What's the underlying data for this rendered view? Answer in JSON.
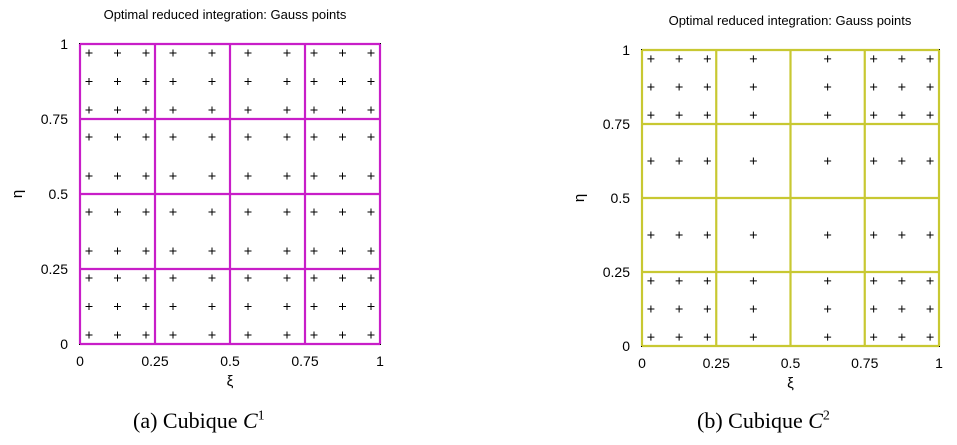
{
  "chart_data": [
    {
      "type": "scatter",
      "title": "Optimal reduced integration: Gauss points",
      "xlabel": "ξ",
      "ylabel": "η",
      "xlim": [
        0,
        1
      ],
      "ylim": [
        0,
        1
      ],
      "xticks": [
        "0",
        "0.25",
        "0.5",
        "0.75",
        "1"
      ],
      "yticks": [
        "0",
        "0.25",
        "0.5",
        "0.75",
        "1"
      ],
      "mesh_color": "#c81ec8",
      "mesh_lines": [
        0,
        0.25,
        0.5,
        0.75,
        1
      ],
      "gauss_x": [
        0.03,
        0.125,
        0.22,
        0.31,
        0.44,
        0.56,
        0.69,
        0.78,
        0.875,
        0.97
      ],
      "gauss_y": [
        0.03,
        0.125,
        0.22,
        0.31,
        0.44,
        0.56,
        0.69,
        0.78,
        0.875,
        0.97
      ],
      "caption": {
        "prefix": "(a) Cubique ",
        "symbol": "C",
        "sup": "1"
      }
    },
    {
      "type": "scatter",
      "title": "Optimal reduced integration: Gauss points",
      "xlabel": "ξ",
      "ylabel": "η",
      "xlim": [
        0,
        1
      ],
      "ylim": [
        0,
        1
      ],
      "xticks": [
        "0",
        "0.25",
        "0.5",
        "0.75",
        "1"
      ],
      "yticks": [
        "0",
        "0.25",
        "0.5",
        "0.75",
        "1"
      ],
      "mesh_color": "#c8c832",
      "mesh_lines_x": [
        0,
        0.25,
        0.5,
        0.75,
        1
      ],
      "mesh_lines_y": [
        0,
        0.25,
        0.5,
        0.75,
        1
      ],
      "gauss_x": [
        0.03,
        0.125,
        0.22,
        0.375,
        0.625,
        0.78,
        0.875,
        0.97
      ],
      "gauss_y": [
        0.03,
        0.125,
        0.22,
        0.375,
        0.625,
        0.78,
        0.875,
        0.97
      ],
      "caption": {
        "prefix": "(b) Cubique ",
        "symbol": "C",
        "sup": "2"
      }
    }
  ]
}
